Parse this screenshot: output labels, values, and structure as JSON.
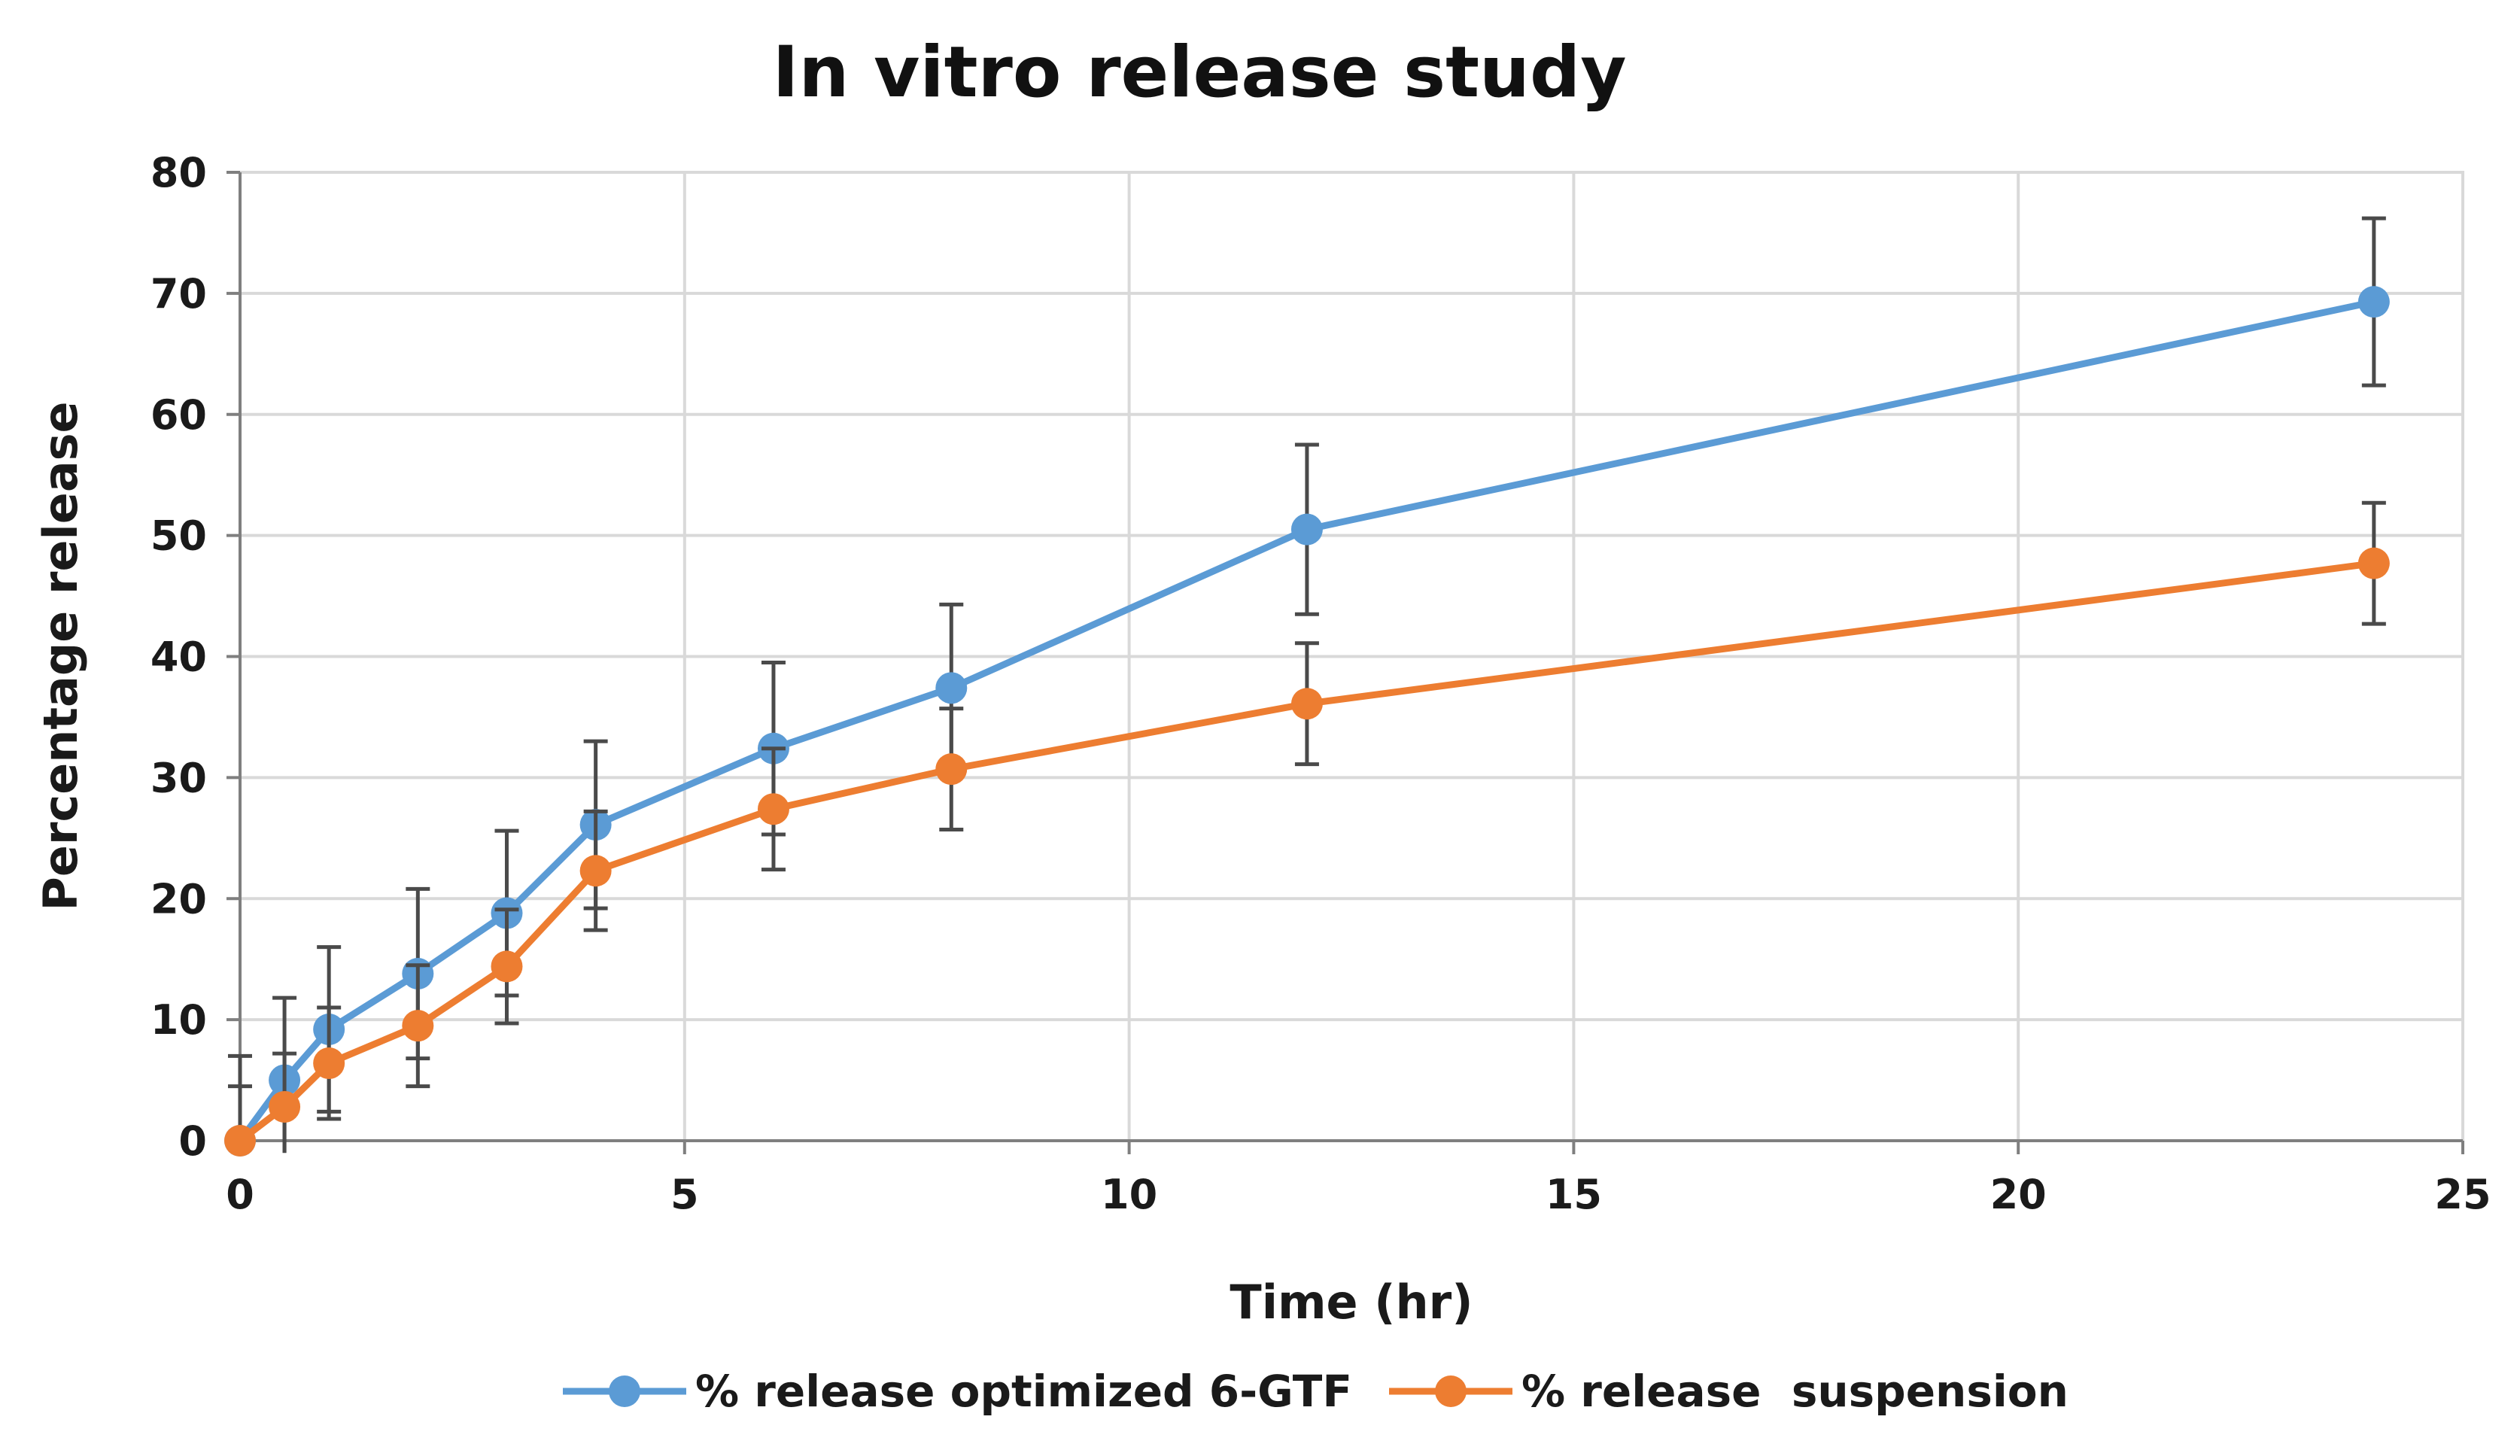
{
  "chart_data": {
    "type": "line",
    "title": "In vitro release study",
    "xlabel": "Time (hr)",
    "ylabel": "Percentage release",
    "xlim": [
      0,
      25
    ],
    "ylim": [
      0,
      80
    ],
    "x_ticks": [
      0,
      5,
      10,
      15,
      20,
      25
    ],
    "y_ticks": [
      0,
      10,
      20,
      30,
      40,
      50,
      60,
      70,
      80
    ],
    "x_tick_labels": [
      "0",
      "5",
      "10",
      "15",
      "20",
      "25"
    ],
    "y_tick_labels": [
      "0",
      "10",
      "20",
      "30",
      "40",
      "50",
      "60",
      "70",
      "80"
    ],
    "grid": true,
    "legend_position": "bottom",
    "x": [
      0,
      0.5,
      1,
      2,
      3,
      4,
      6,
      8,
      12,
      24
    ],
    "series": [
      {
        "name": "% release optimized 6-GTF",
        "color": "#5b9bd5",
        "values": [
          0,
          5,
          9.2,
          13.8,
          18.8,
          26.1,
          32.4,
          37.4,
          50.5,
          69.3
        ],
        "error": [
          7,
          6.8,
          6.8,
          7,
          6.8,
          6.9,
          7.1,
          6.9,
          7,
          6.9
        ]
      },
      {
        "name": "% release  suspension",
        "color": "#ed7d31",
        "values": [
          0,
          2.8,
          6.4,
          9.5,
          14.4,
          22.3,
          27.4,
          30.7,
          36.1,
          47.7
        ],
        "error": [
          4.5,
          4.4,
          4.6,
          5,
          4.7,
          4.9,
          5,
          5,
          5,
          5
        ]
      }
    ],
    "error_bar_color": "#4a4a4a"
  }
}
